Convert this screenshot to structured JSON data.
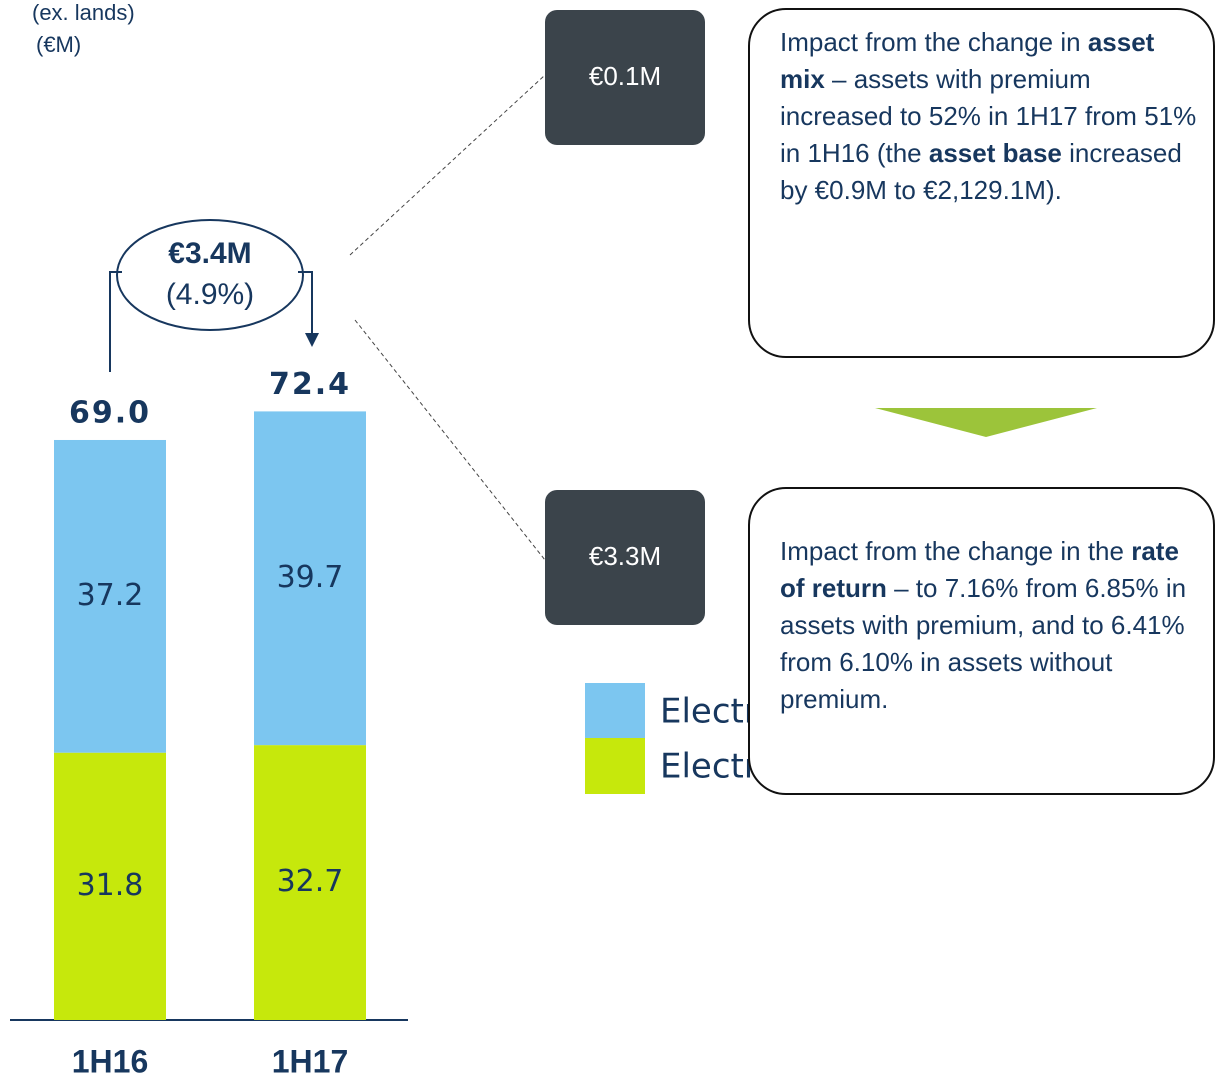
{
  "chart_data": {
    "type": "stacked_bar",
    "subtitle_lines": [
      "(ex. lands)",
      "(€M)"
    ],
    "categories": [
      "1H16",
      "1H17"
    ],
    "series": [
      {
        "name": "Electricity without premium",
        "color": "#c6e80c",
        "values": [
          31.8,
          32.7
        ]
      },
      {
        "name": "Electricity with premium",
        "color": "#7cc6f0",
        "values": [
          37.2,
          39.7
        ]
      }
    ],
    "totals": [
      69.0,
      72.4
    ],
    "total_labels": [
      "69.0",
      "72.4"
    ],
    "change": {
      "amount": "€3.4M",
      "percent": "(4.9%)"
    },
    "impacts": [
      "€0.1M",
      "€3.3M"
    ],
    "callouts": [
      [
        {
          "text": "Impact from the change in ",
          "bold": false
        },
        {
          "text": "asset mix",
          "bold": true
        },
        {
          "text": " – assets with premium increased to 52% in 1H17 from 51% in 1H16 (the ",
          "bold": false
        },
        {
          "text": "asset base",
          "bold": true
        },
        {
          "text": " increased by €0.9M to €2,129.1M).",
          "bold": false
        }
      ],
      [
        {
          "text": "Impact from the change in the ",
          "bold": false
        },
        {
          "text": "rate of return",
          "bold": true
        },
        {
          "text": " – to 7.16% from 6.85% in assets with premium, and to 6.41% from 6.10% in assets without premium.",
          "bold": false
        }
      ]
    ]
  }
}
